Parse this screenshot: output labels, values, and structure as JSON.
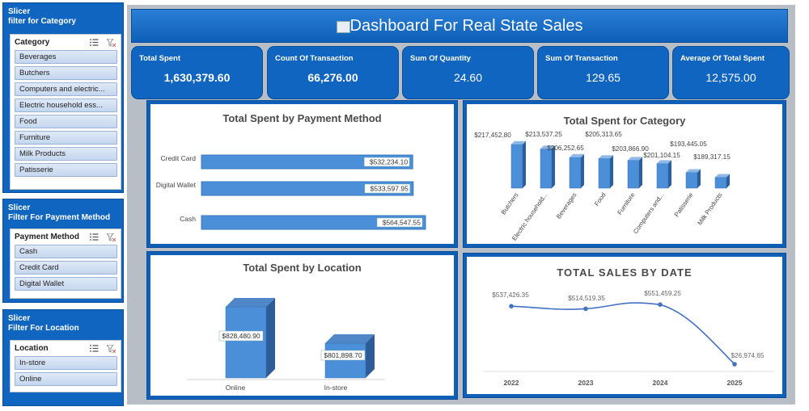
{
  "slicers": [
    {
      "title_line1": "Slicer",
      "title_line2": "filter for Category",
      "field": "Category",
      "items": [
        "Beverages",
        "Butchers",
        "Computers and electric...",
        "Electric household ess...",
        "Food",
        "Furniture",
        "Milk Products",
        "Patisserie"
      ]
    },
    {
      "title_line1": "Slicer",
      "title_line2": "Filter For Payment Method",
      "field": "Payment Method",
      "items": [
        "Cash",
        "Credit Card",
        "Digital Wallet"
      ]
    },
    {
      "title_line1": "Slicer",
      "title_line2": "Filter For Location",
      "field": "Location",
      "items": [
        "In-store",
        "Online"
      ]
    }
  ],
  "header": {
    "title": "Dashboard For Real State Sales"
  },
  "kpis": [
    {
      "label": "Total Spent",
      "value": "1,630,379.60"
    },
    {
      "label": "Count Of Transaction",
      "value": "66,276.00"
    },
    {
      "label": "Sum Of Quantity",
      "value": "24.60"
    },
    {
      "label": "Sum Of  Transaction",
      "value": "129.65"
    },
    {
      "label": "Average Of Total Spent",
      "value": "12,575.00"
    }
  ],
  "colors": {
    "accent": "#0f65c0",
    "bar": "#4a8fd8",
    "line": "#4472c4",
    "panel_bg": "#b8bec6"
  },
  "chart_data": [
    {
      "type": "bar",
      "orientation": "horizontal",
      "title": "Total Spent by Payment Method",
      "categories": [
        "Credit Card",
        "Digital Wallet",
        "Cash"
      ],
      "values": [
        532234.1,
        533597.95,
        564547.55
      ],
      "labels": [
        "$532,234.10",
        "$533,597.95",
        "$564,547.55"
      ]
    },
    {
      "type": "bar",
      "title": "Total Spent for Category",
      "categories": [
        "Butchers",
        "Electric household...",
        "Beverages",
        "Food",
        "Furniture",
        "Computers and...",
        "Patisserie",
        "Milk Products"
      ],
      "values": [
        217452.8,
        213537.25,
        206252.65,
        205313.65,
        203866.9,
        201104.15,
        193445.05,
        189317.15
      ],
      "labels": [
        "$217,452.80",
        "$213,537.25",
        "$206,252.65",
        "$205,313.65",
        "$203,866.90",
        "$201,104.15",
        "$193,445.05",
        "$189,317.15"
      ]
    },
    {
      "type": "bar",
      "title": "Total Spent by Location",
      "categories": [
        "Online",
        "In-store"
      ],
      "values": [
        828480.9,
        801898.7
      ],
      "labels": [
        "$828,480.90",
        "$801,898.70"
      ]
    },
    {
      "type": "line",
      "title": "TOTAL SALES BY DATE",
      "x": [
        "2022",
        "2023",
        "2024",
        "2025"
      ],
      "values": [
        537426.35,
        514519.35,
        551459.25,
        26974.65
      ],
      "labels": [
        "$537,426.35",
        "$514,519.35",
        "$551,459.25",
        "$26,974.65"
      ]
    }
  ]
}
